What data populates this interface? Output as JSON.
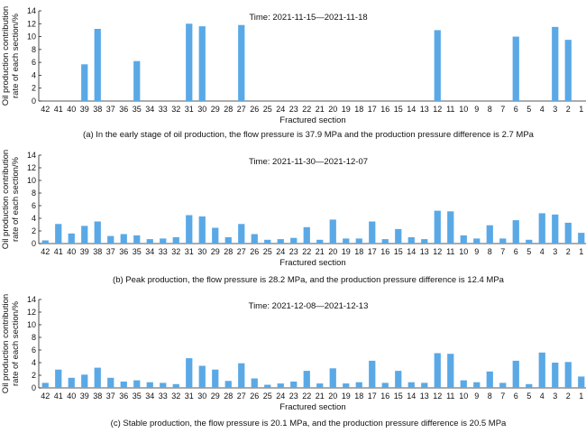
{
  "chart_data": [
    {
      "type": "bar",
      "title": "Time: 2021-11-15—2021-11-18",
      "xlabel": "Fractured section",
      "ylabel": "Oil production contribution rate of each section/%",
      "ylabel_lines": [
        "Oil production contribution",
        "rate of each section/%"
      ],
      "caption": "(a) In the early stage of oil production, the flow pressure is 37.9 MPa and the production pressure difference is 2.7 MPa",
      "ylim": [
        0,
        14
      ],
      "yticks": [
        0,
        2,
        4,
        6,
        8,
        10,
        12,
        14
      ],
      "categories": [
        "42",
        "41",
        "40",
        "39",
        "38",
        "37",
        "36",
        "35",
        "34",
        "33",
        "32",
        "31",
        "30",
        "29",
        "28",
        "27",
        "26",
        "25",
        "24",
        "23",
        "22",
        "21",
        "20",
        "19",
        "18",
        "17",
        "16",
        "15",
        "14",
        "13",
        "12",
        "11",
        "10",
        "9",
        "8",
        "7",
        "6",
        "5",
        "4",
        "3",
        "2",
        "1"
      ],
      "values": [
        0,
        0,
        0,
        5.7,
        11.2,
        0,
        0,
        6.2,
        0,
        0,
        0,
        12.0,
        11.6,
        0,
        0,
        11.8,
        0,
        0,
        0,
        0,
        0,
        0,
        0,
        0,
        0,
        0,
        0,
        0,
        0,
        0,
        11.0,
        0,
        0,
        0,
        0,
        0,
        10.0,
        0,
        0,
        11.5,
        9.5,
        0
      ],
      "color": "#5aa9e6",
      "grid": false
    },
    {
      "type": "bar",
      "title": "Time: 2021-11-30—2021-12-07",
      "xlabel": "Fractured section",
      "ylabel": "Oil production contribution rate of each section/%",
      "ylabel_lines": [
        "Oil production contribution",
        "rate of each section/%"
      ],
      "caption": "(b) Peak production, the flow pressure is 28.2 MPa, and the production pressure difference is 12.4 MPa",
      "ylim": [
        0,
        14
      ],
      "yticks": [
        0,
        2,
        4,
        6,
        8,
        10,
        12,
        14
      ],
      "categories": [
        "42",
        "41",
        "40",
        "39",
        "38",
        "37",
        "36",
        "35",
        "34",
        "33",
        "32",
        "31",
        "30",
        "29",
        "28",
        "27",
        "26",
        "25",
        "24",
        "23",
        "22",
        "21",
        "20",
        "19",
        "18",
        "17",
        "16",
        "15",
        "14",
        "13",
        "12",
        "11",
        "10",
        "9",
        "8",
        "7",
        "6",
        "5",
        "4",
        "3",
        "2",
        "1"
      ],
      "values": [
        0.5,
        3.1,
        1.6,
        2.8,
        3.5,
        1.2,
        1.5,
        1.3,
        0.7,
        0.8,
        1.0,
        4.5,
        4.3,
        2.5,
        1.0,
        3.1,
        1.5,
        0.6,
        0.7,
        0.9,
        2.6,
        0.6,
        3.8,
        0.8,
        0.8,
        3.5,
        0.7,
        2.3,
        1.0,
        0.7,
        5.2,
        5.1,
        1.3,
        0.8,
        2.9,
        0.8,
        3.7,
        0.6,
        4.8,
        4.6,
        3.3,
        1.7
      ],
      "color": "#5aa9e6",
      "grid": false
    },
    {
      "type": "bar",
      "title": "Time: 2021-12-08—2021-12-13",
      "xlabel": "Fractured section",
      "ylabel": "Oil production contribution rate of each section/%",
      "ylabel_lines": [
        "Oil production contribution",
        "rate of each section/%"
      ],
      "caption": "(c) Stable production, the flow pressure is 20.1 MPa, and the production pressure difference is 20.5 MPa",
      "ylim": [
        0,
        14
      ],
      "yticks": [
        0,
        2,
        4,
        6,
        8,
        10,
        12,
        14
      ],
      "categories": [
        "42",
        "41",
        "40",
        "39",
        "38",
        "37",
        "36",
        "35",
        "34",
        "33",
        "32",
        "31",
        "30",
        "29",
        "28",
        "27",
        "26",
        "25",
        "24",
        "23",
        "22",
        "21",
        "20",
        "19",
        "18",
        "17",
        "16",
        "15",
        "14",
        "13",
        "12",
        "11",
        "10",
        "9",
        "8",
        "7",
        "6",
        "5",
        "4",
        "3",
        "2",
        "1"
      ],
      "values": [
        0.8,
        2.9,
        1.6,
        2.1,
        3.2,
        1.6,
        1.0,
        1.2,
        0.9,
        0.8,
        0.6,
        4.7,
        3.5,
        2.9,
        1.1,
        3.9,
        1.5,
        0.5,
        0.7,
        1.0,
        2.7,
        0.7,
        3.1,
        0.7,
        0.9,
        4.3,
        0.8,
        2.7,
        0.9,
        0.8,
        5.5,
        5.4,
        1.2,
        0.9,
        2.6,
        0.8,
        4.3,
        0.6,
        5.6,
        4.0,
        4.1,
        1.8
      ],
      "color": "#5aa9e6",
      "grid": false
    }
  ]
}
